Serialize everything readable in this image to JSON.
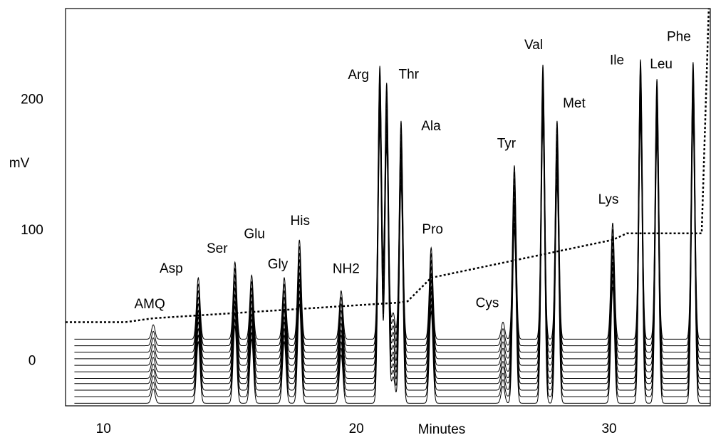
{
  "chart_data": {
    "type": "chromatogram",
    "xlabel": "Minutes",
    "ylabel": "mV",
    "xlim": [
      8.5,
      34
    ],
    "ylim": [
      -34,
      270
    ],
    "xticks": [
      10,
      20,
      30
    ],
    "yticks": [
      0,
      100,
      200
    ],
    "labels": [
      "AMQ",
      "Asp",
      "Ser",
      "Glu",
      "Gly",
      "His",
      "NH2",
      "Arg",
      "Thr",
      null,
      "Ala",
      "Pro",
      "Cys",
      "Tyr",
      "Val",
      "Met",
      "Lys",
      "Ile",
      "Leu",
      "Phe"
    ],
    "x": [
      11.97,
      13.75,
      15.2,
      15.86,
      17.15,
      17.75,
      19.4,
      20.93,
      21.2,
      21.46,
      21.77,
      22.96,
      25.8,
      26.25,
      27.38,
      27.94,
      30.14,
      31.24,
      31.89,
      33.32
    ],
    "values": [
      28,
      64,
      76,
      66,
      64,
      93,
      54,
      226,
      213,
      37,
      184,
      87,
      30,
      150,
      227,
      184,
      106,
      231,
      216,
      229
    ],
    "trace_baselines": [
      17,
      12,
      7,
      2,
      -3,
      -8,
      -13,
      -17,
      -22,
      -27,
      -32
    ],
    "color": "#000000",
    "gradient": {
      "x": [
        8.5,
        10.85,
        11.97,
        21.69,
        22.03,
        22.96,
        30.14,
        30.7,
        33.66,
        33.94
      ],
      "values": [
        30,
        30,
        33,
        45,
        46,
        64,
        93,
        98,
        98,
        270
      ]
    }
  }
}
